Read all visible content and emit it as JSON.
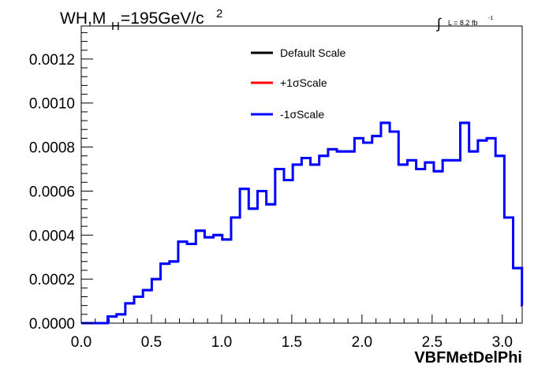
{
  "chart_data": {
    "type": "line",
    "title": {
      "prefix": "WH,M",
      "subscript": "H",
      "value": "=195GeV/c",
      "superscript": "2"
    },
    "lumi": {
      "integral": "∫",
      "text": "L = 8.2 fb",
      "superscript": "-1"
    },
    "xlabel": "VBFMetDelPhi",
    "ylabel": "",
    "xlim": [
      0,
      3.1416
    ],
    "ylim": [
      0,
      0.00135
    ],
    "x_ticks": [
      "0.0",
      "0.5",
      "1.0",
      "1.5",
      "2.0",
      "2.5",
      "3.0"
    ],
    "y_ticks": [
      "0.0000",
      "0.0002",
      "0.0004",
      "0.0006",
      "0.0008",
      "0.0010",
      "0.0012"
    ],
    "bin_edges_start": 0,
    "bin_width": 0.0628,
    "legend": [
      {
        "label": "Default Scale",
        "color": "#000000"
      },
      {
        "label": "+1σScale",
        "color": "#ff0000"
      },
      {
        "label": "-1σScale",
        "color": "#0000ff"
      }
    ],
    "series": [
      {
        "name": "-1σScale",
        "color": "#0000ff",
        "values": [
          0.0,
          0.0,
          0.0,
          3e-05,
          4e-05,
          9e-05,
          0.00012,
          0.00015,
          0.0002,
          0.00027,
          0.00028,
          0.00037,
          0.00036,
          0.00042,
          0.00039,
          0.0004,
          0.00038,
          0.00048,
          0.00061,
          0.00052,
          0.0006,
          0.00054,
          0.0007,
          0.00065,
          0.00072,
          0.00075,
          0.00072,
          0.00076,
          0.00079,
          0.00078,
          0.00078,
          0.00084,
          0.00082,
          0.00085,
          0.00091,
          0.00087,
          0.00072,
          0.00074,
          0.0007,
          0.00073,
          0.00069,
          0.00074,
          0.00074,
          0.00091,
          0.00078,
          0.00083,
          0.00084,
          0.00076,
          0.00048,
          0.00025,
          8e-05
        ]
      }
    ]
  }
}
